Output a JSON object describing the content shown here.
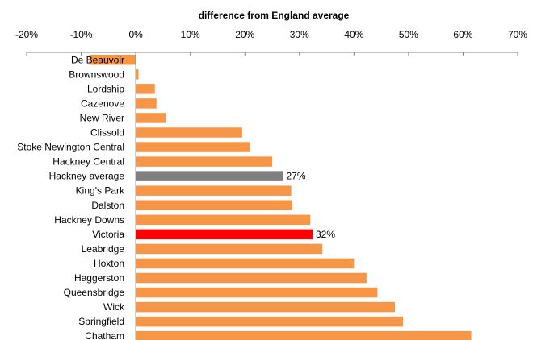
{
  "chart_data": {
    "type": "bar",
    "orientation": "horizontal",
    "title": "difference from England  average",
    "xlim": [
      -20,
      70
    ],
    "xticks": [
      "-20%",
      "-10%",
      "0%",
      "10%",
      "20%",
      "30%",
      "40%",
      "50%",
      "60%",
      "70%"
    ],
    "tick_values": [
      -20,
      -10,
      0,
      10,
      20,
      30,
      40,
      50,
      60,
      70
    ],
    "grid": false,
    "legend": "none",
    "categories": [
      "De Beauvoir",
      "Brownswood",
      "Lordship",
      "Cazenove",
      "New River",
      "Clissold",
      "Stoke Newington Central",
      "Hackney Central",
      "Hackney average",
      "King's Park",
      "Dalston",
      "Hackney Downs",
      "Victoria",
      "Leabridge",
      "Hoxton",
      "Haggerston",
      "Queensbridge",
      "Wick",
      "Springfield",
      "Chatham"
    ],
    "values": [
      -8.5,
      0.5,
      3.5,
      3.8,
      5.5,
      19.5,
      21,
      25,
      27,
      28.5,
      28.7,
      32,
      32.4,
      34.2,
      40,
      42.3,
      44.3,
      47.5,
      49,
      61.5
    ],
    "bar_colors": [
      "#F79646",
      "#F79646",
      "#F79646",
      "#F79646",
      "#F79646",
      "#F79646",
      "#F79646",
      "#F79646",
      "#7F7F7F",
      "#F79646",
      "#F79646",
      "#F79646",
      "#FF0000",
      "#F79646",
      "#F79646",
      "#F79646",
      "#F79646",
      "#F79646",
      "#F79646",
      "#F79646"
    ],
    "data_labels": [
      "",
      "",
      "",
      "",
      "",
      "",
      "",
      "",
      "27%",
      "",
      "",
      "",
      "32%",
      "",
      "",
      "",
      "",
      "",
      "",
      ""
    ]
  },
  "colors": {
    "default_bar": "#F79646",
    "highlight_average": "#7F7F7F",
    "highlight_ward": "#FF0000",
    "axis": "#868686"
  }
}
